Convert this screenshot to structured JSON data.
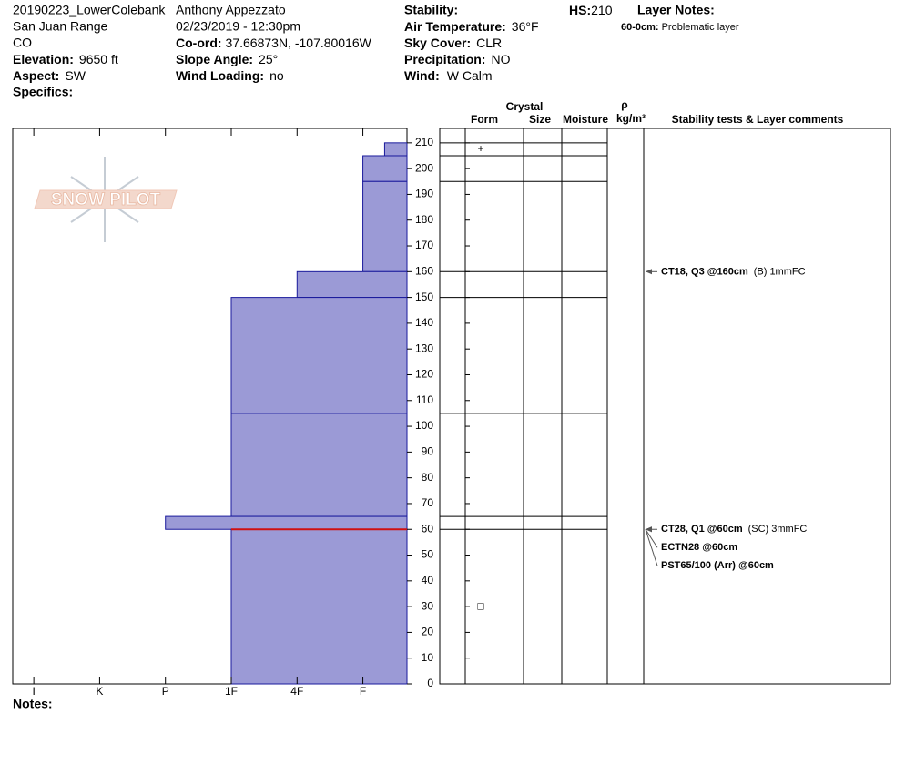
{
  "header": {
    "site": "20190223_LowerColebank",
    "range": "San Juan Range",
    "state": "CO",
    "elevation": {
      "label": "Elevation:",
      "value": "9650 ft"
    },
    "aspect": {
      "label": "Aspect:",
      "value": "SW"
    },
    "specifics": {
      "label": "Specifics:"
    },
    "observer": "Anthony Appezzato",
    "datetime": "02/23/2019 - 12:30pm",
    "coord": {
      "label": "Co-ord:",
      "value": "37.66873N, -107.80016W"
    },
    "slope": {
      "label": "Slope Angle:",
      "value": "25°"
    },
    "wind_loading": {
      "label": "Wind Loading:",
      "value": "no"
    },
    "stability": {
      "label": "Stability:"
    },
    "air_temp": {
      "label": "Air Temperature:",
      "value": "36°F"
    },
    "sky": {
      "label": "Sky Cover:",
      "value": "CLR"
    },
    "precip": {
      "label": "Precipitation:",
      "value": "NO"
    },
    "wind": {
      "label": "Wind:",
      "value": "W Calm"
    },
    "hs": {
      "label": "HS:",
      "value": "210"
    },
    "layer_notes": {
      "label": "Layer Notes:",
      "note": {
        "label": "60-0cm:",
        "top": 60,
        "bottom": 0,
        "text": "Problematic layer"
      }
    }
  },
  "logo": "SNOW PILOT",
  "columns": {
    "crystal": "Crystal",
    "form": "Form",
    "size": "Size",
    "moisture": "Moisture",
    "rho": "ρ",
    "density": "kg/m³",
    "comments": "Stability tests & Layer comments"
  },
  "profile": {
    "ylim": [
      0,
      215.6
    ],
    "yticks": [
      0,
      10,
      20,
      30,
      40,
      50,
      60,
      70,
      80,
      90,
      100,
      110,
      120,
      130,
      140,
      150,
      160,
      170,
      180,
      190,
      200,
      210
    ],
    "xlim": [
      6.32,
      0.33
    ],
    "xticks": [
      {
        "value": 6,
        "label": "I"
      },
      {
        "value": 5,
        "label": "K"
      },
      {
        "value": 4,
        "label": "P"
      },
      {
        "value": 3,
        "label": "1F"
      },
      {
        "value": 2,
        "label": "4F"
      },
      {
        "value": 1,
        "label": "F"
      }
    ],
    "layers": [
      {
        "top": 210,
        "bottom": 205,
        "hardness": 0.67,
        "form": "+"
      },
      {
        "top": 205,
        "bottom": 195,
        "hardness": 1
      },
      {
        "top": 195,
        "bottom": 160,
        "hardness": 1
      },
      {
        "top": 160,
        "bottom": 150,
        "hardness": 2
      },
      {
        "top": 150,
        "bottom": 105,
        "hardness": 3
      },
      {
        "top": 105,
        "bottom": 65,
        "hardness": 3
      },
      {
        "top": 65,
        "bottom": 60,
        "hardness": 4
      },
      {
        "top": 60,
        "bottom": 0,
        "hardness": 3,
        "form": "□"
      }
    ],
    "tests": [
      {
        "depth": 160,
        "label": "CT18, Q3 @160cm",
        "comment": "(B) 1mmFC"
      },
      {
        "depth": 60,
        "label": "CT28, Q1 @60cm",
        "comment": "(SC) 3mmFC"
      },
      {
        "depth": 60,
        "label": "ECTN28 @60cm"
      },
      {
        "depth": 60,
        "label": "PST65/100 (Arr) @60cm"
      }
    ]
  },
  "notes": {
    "label": "Notes:"
  }
}
